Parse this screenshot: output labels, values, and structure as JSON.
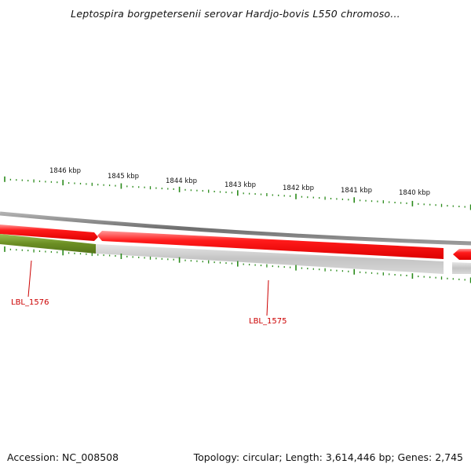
{
  "title": "Leptospira borgpetersenii serovar Hardjo-bovis L550 chromoso...",
  "footer": {
    "accession": "Accession: NC_008508",
    "summary": "Topology: circular; Length: 3,614,446 bp; Genes: 2,745"
  },
  "colors": {
    "tick": "#2a8a1a",
    "forward_gene": "#ee0000",
    "forward_gene_light": "#ff8888",
    "reverse_gene": "#6b8e23",
    "backbone": "#808080",
    "label": "#cc0000"
  },
  "scale_ticks": [
    {
      "label": "1846 kbp"
    },
    {
      "label": "1845 kbp"
    },
    {
      "label": "1844 kbp"
    },
    {
      "label": "1843 kbp"
    },
    {
      "label": "1842 kbp"
    },
    {
      "label": "1841 kbp"
    },
    {
      "label": "1840 kbp"
    }
  ],
  "genes": [
    {
      "name": "LBL_1576"
    },
    {
      "name": "LBL_1575"
    }
  ]
}
